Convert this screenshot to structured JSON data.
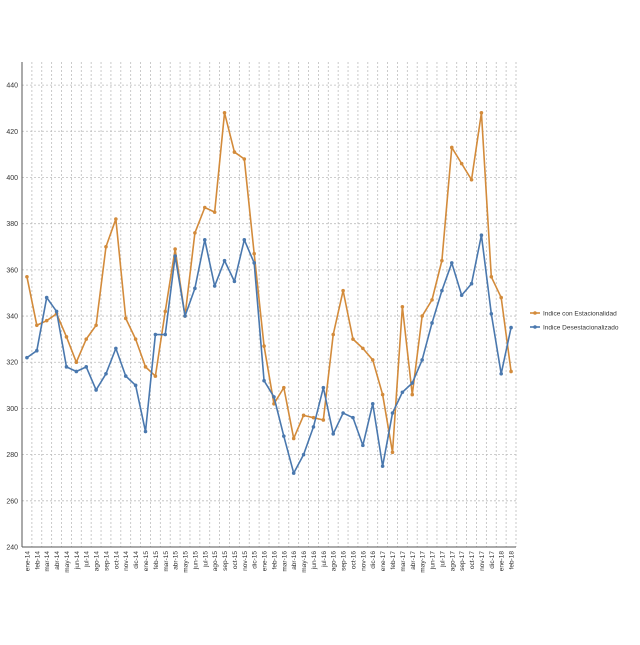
{
  "chart_data": {
    "type": "line",
    "title": "",
    "xlabel": "",
    "ylabel": "",
    "ylim": [
      240,
      450
    ],
    "yticks": [
      240,
      260,
      280,
      300,
      320,
      340,
      360,
      380,
      400,
      420,
      440
    ],
    "grid": true,
    "legend_position": "right",
    "categories": [
      "ene-14",
      "feb-14",
      "mar-14",
      "abr-14",
      "may-14",
      "jun-14",
      "jul-14",
      "ago-14",
      "sep-14",
      "oct-14",
      "nov-14",
      "dic-14",
      "ene-15",
      "feb-15",
      "mar-15",
      "abr-15",
      "may-15",
      "jun-15",
      "jul-15",
      "ago-15",
      "sep-15",
      "oct-15",
      "nov-15",
      "dic-15",
      "ene-16",
      "feb-16",
      "mar-16",
      "abr-16",
      "may-16",
      "jun-16",
      "jul-16",
      "ago-16",
      "sep-16",
      "oct-16",
      "nov-16",
      "dic-16",
      "ene-17",
      "feb-17",
      "mar-17",
      "abr-17",
      "may-17",
      "jun-17",
      "jul-17",
      "ago-17",
      "sep-17",
      "oct-17",
      "nov-17",
      "dic-17",
      "ene-18",
      "feb-18"
    ],
    "series": [
      {
        "name": "Indice con Estacionalidad",
        "color": "#d38b3b",
        "values": [
          357,
          336,
          338,
          341,
          331,
          320,
          330,
          336,
          370,
          382,
          339,
          330,
          318,
          314,
          342,
          369,
          340,
          376,
          387,
          385,
          428,
          411,
          408,
          367,
          327,
          302,
          309,
          287,
          297,
          296,
          295,
          332,
          351,
          330,
          326,
          321,
          306,
          281,
          344,
          306,
          340,
          347,
          364,
          413,
          406,
          399,
          428,
          357,
          348,
          316
        ]
      },
      {
        "name": "Indice Desestacionalizado",
        "color": "#4a78ae",
        "values": [
          322,
          325,
          348,
          342,
          318,
          316,
          318,
          308,
          315,
          326,
          314,
          310,
          290,
          332,
          332,
          366,
          340,
          352,
          373,
          353,
          364,
          355,
          373,
          363,
          312,
          305,
          288,
          272,
          280,
          292,
          309,
          289,
          298,
          296,
          284,
          302,
          275,
          298,
          307,
          311,
          321,
          337,
          351,
          363,
          349,
          354,
          375,
          341,
          315,
          335
        ]
      }
    ]
  }
}
